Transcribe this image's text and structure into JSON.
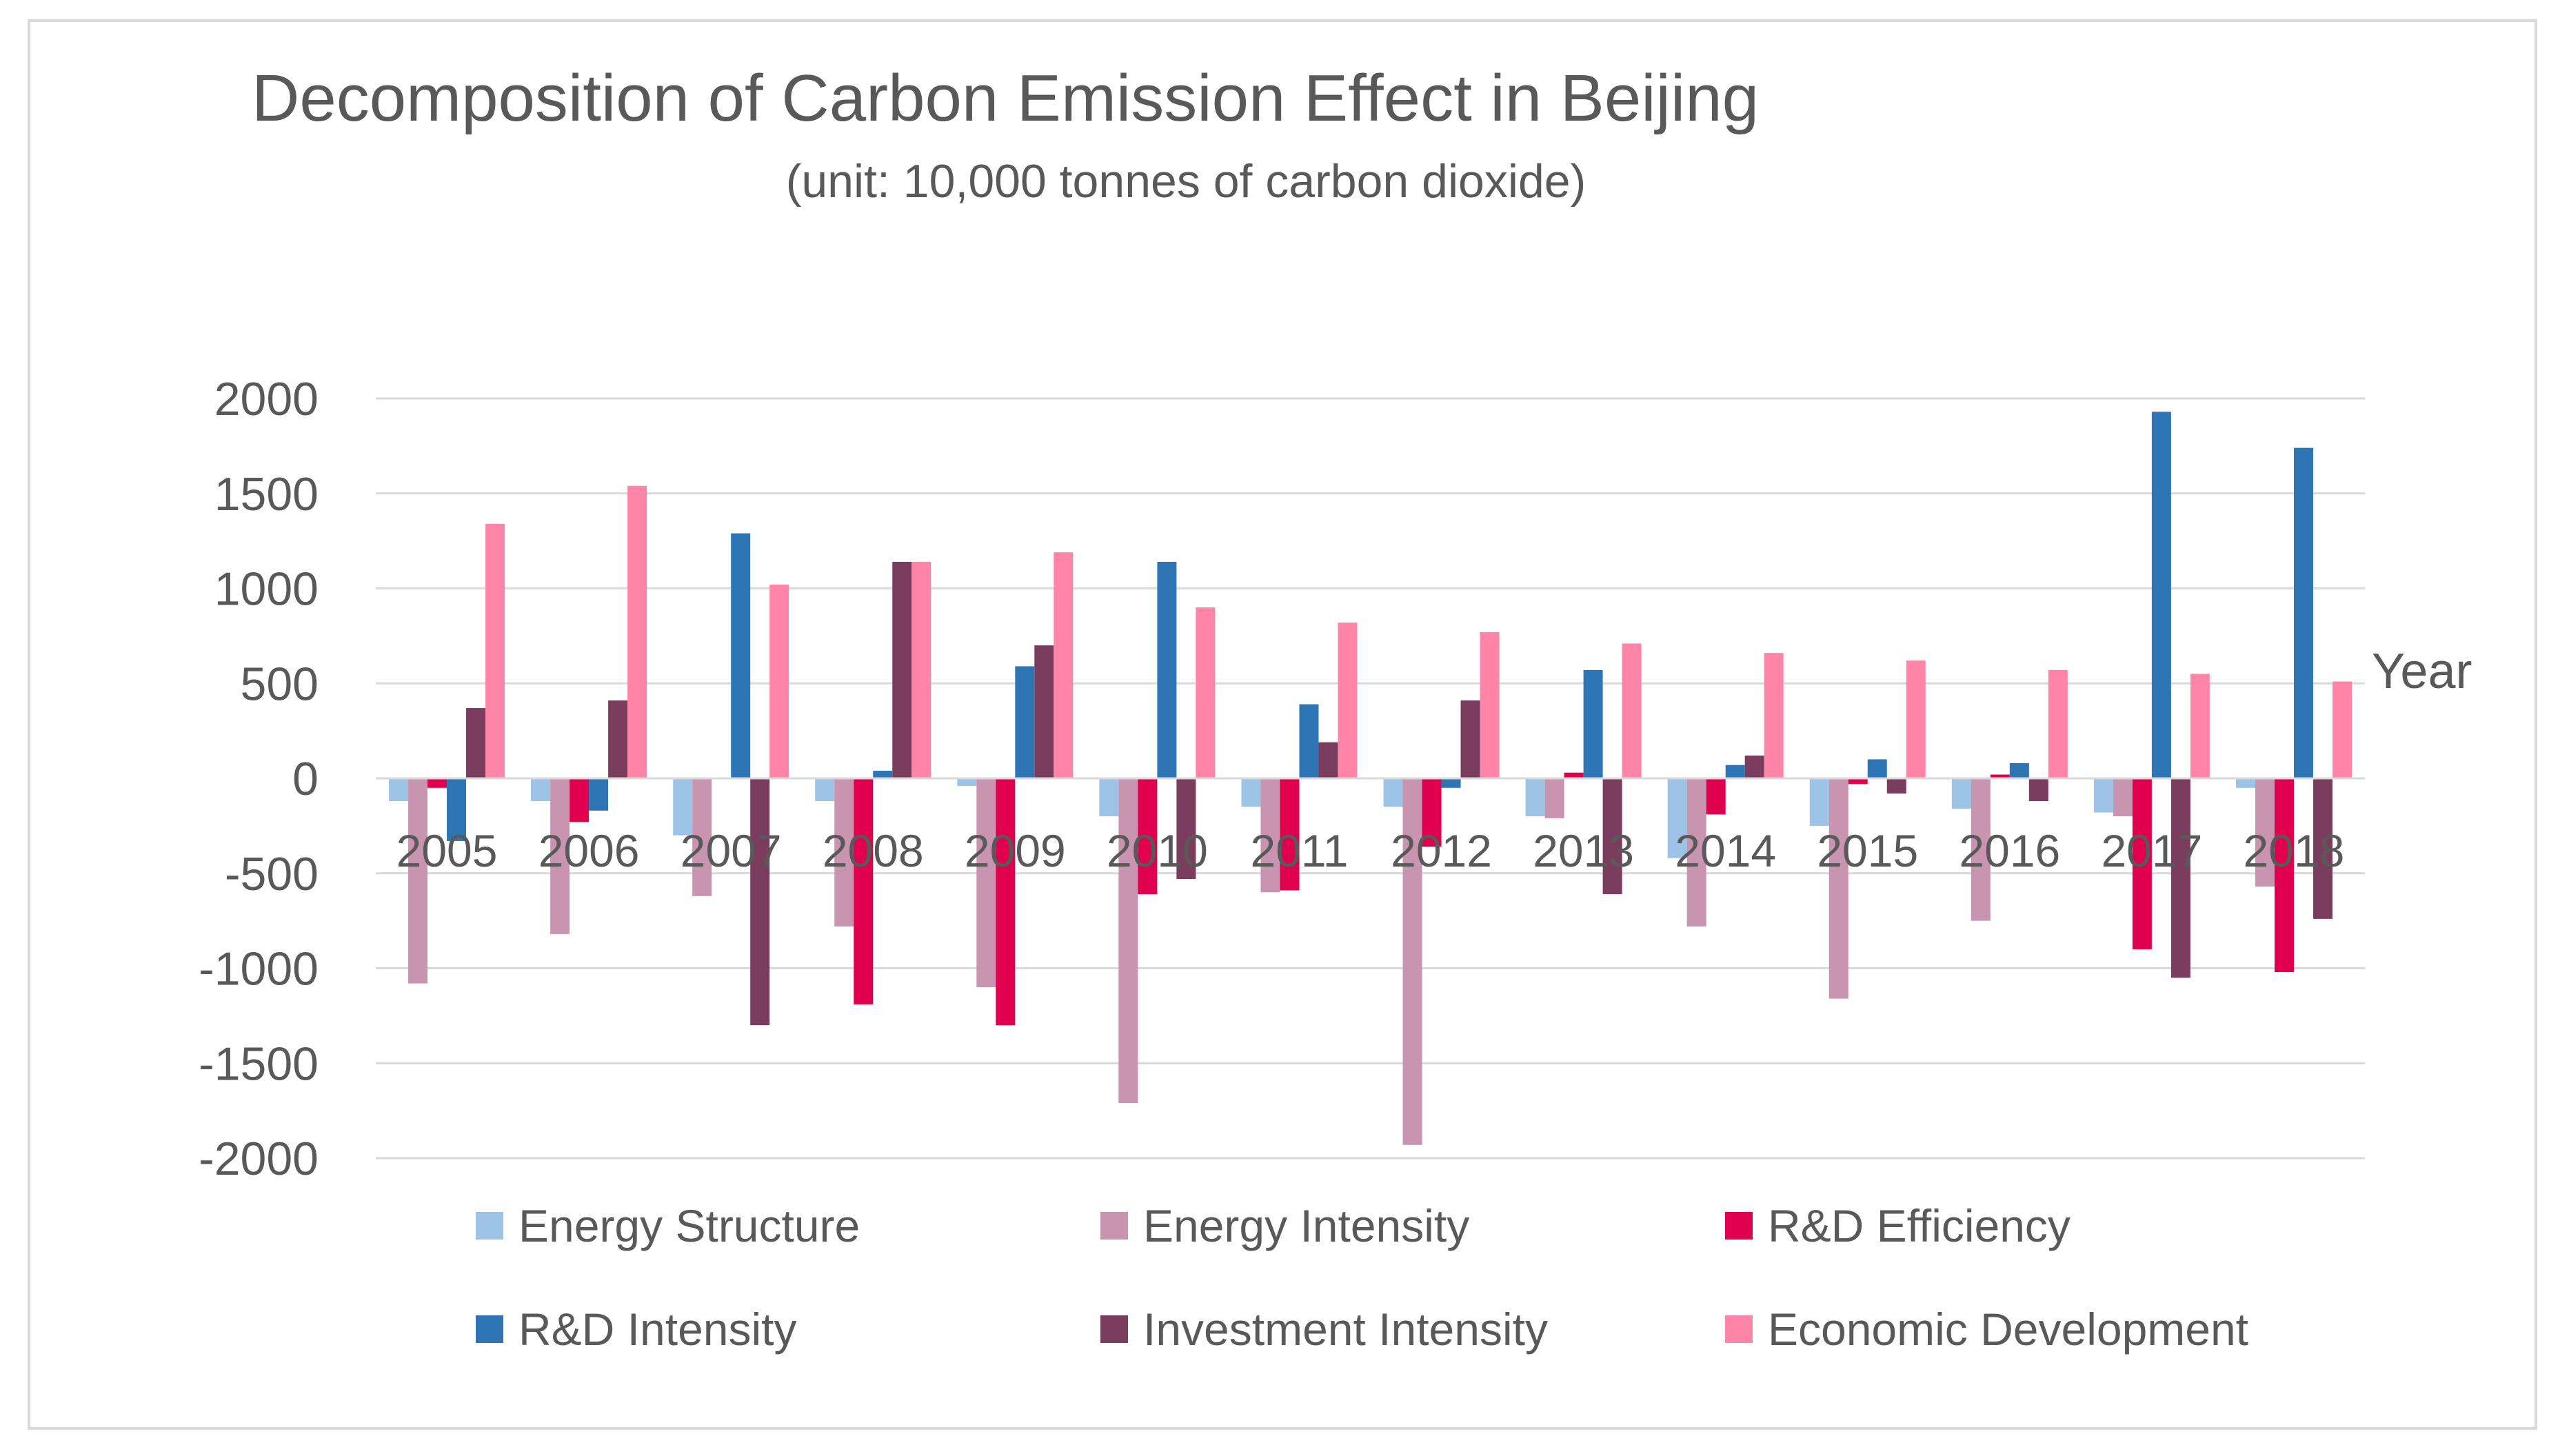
{
  "chart_data": {
    "type": "bar",
    "title": "Decomposition of Carbon Emission Effect in Beijing",
    "subtitle": "(unit: 10,000 tonnes of carbon dioxide)",
    "xlabel": "Year",
    "ylabel": "",
    "ylim": [
      -2000,
      2000
    ],
    "yticks": [
      2000,
      1500,
      1000,
      500,
      0,
      -500,
      -1000,
      -1500,
      -2000
    ],
    "grid": true,
    "legend_position": "bottom",
    "categories": [
      "2005",
      "2006",
      "2007",
      "2008",
      "2009",
      "2010",
      "2011",
      "2012",
      "2013",
      "2014",
      "2015",
      "2016",
      "2017",
      "2018"
    ],
    "series": [
      {
        "name": "Energy Structure",
        "color": "#9dc3e6",
        "values": [
          -120,
          -120,
          -300,
          -120,
          -40,
          -200,
          -150,
          -150,
          -200,
          -420,
          -250,
          -160,
          -180,
          -50
        ]
      },
      {
        "name": "Energy Intensity",
        "color": "#c994b0",
        "values": [
          -1080,
          -820,
          -620,
          -780,
          -1100,
          -1710,
          -600,
          -1930,
          -210,
          -780,
          -1160,
          -750,
          -200,
          -570
        ]
      },
      {
        "name": "R&D Efficiency",
        "color": "#e0004d",
        "values": [
          -50,
          -230,
          0,
          -1190,
          -1300,
          -610,
          -590,
          -360,
          30,
          -190,
          -30,
          20,
          -900,
          -1020
        ]
      },
      {
        "name": "R&D Intensity",
        "color": "#2e75b6",
        "values": [
          -330,
          -170,
          1290,
          40,
          590,
          1140,
          390,
          -50,
          570,
          70,
          100,
          80,
          1930,
          1740
        ]
      },
      {
        "name": "Investment Intensity",
        "color": "#7b3d5e",
        "values": [
          370,
          410,
          -1300,
          1140,
          700,
          -530,
          190,
          410,
          -610,
          120,
          -80,
          -120,
          -1050,
          -740
        ]
      },
      {
        "name": "Economic Development",
        "color": "#ff85a8",
        "values": [
          1340,
          1540,
          1020,
          1140,
          1190,
          900,
          820,
          770,
          710,
          660,
          620,
          570,
          550,
          510
        ]
      }
    ]
  }
}
